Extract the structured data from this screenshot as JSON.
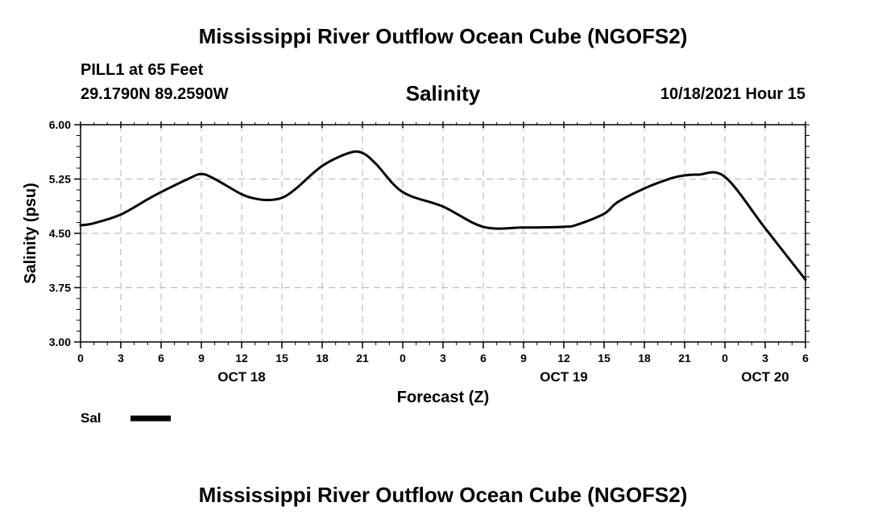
{
  "page": {
    "title_top": "Mississippi River Outflow Ocean Cube (NGOFS2)",
    "title_bottom": "Mississippi River Outflow Ocean Cube (NGOFS2)"
  },
  "station": {
    "name_line": "PILL1 at 65 Feet",
    "coords_line": "29.1790N  89.2590W",
    "datetime": "10/18/2021 Hour 15"
  },
  "chart_data": {
    "type": "line",
    "title": "Salinity",
    "xlabel": "Forecast (Z)",
    "ylabel": "Salinity (psu)",
    "ylim": [
      3.0,
      6.0
    ],
    "yticks": [
      3.0,
      3.75,
      4.5,
      5.25,
      6.0
    ],
    "ytick_labels": [
      "3.00",
      "3.75",
      "4.50",
      "5.25",
      "6.00"
    ],
    "xlim": [
      0,
      54
    ],
    "xticks": [
      0,
      3,
      6,
      9,
      12,
      15,
      18,
      21,
      24,
      27,
      30,
      33,
      36,
      39,
      42,
      45,
      48,
      51,
      54
    ],
    "xtick_labels": [
      "0",
      "3",
      "6",
      "9",
      "12",
      "15",
      "18",
      "21",
      "0",
      "3",
      "6",
      "9",
      "12",
      "15",
      "18",
      "21",
      "0",
      "3",
      "6"
    ],
    "date_labels": [
      {
        "x": 12,
        "label": "OCT 18"
      },
      {
        "x": 36,
        "label": "OCT 19"
      },
      {
        "x": 51,
        "label": "OCT 20"
      }
    ],
    "grid": true,
    "legend": "bottom-left",
    "series": [
      {
        "name": "Sal",
        "x": [
          0,
          1,
          3,
          5,
          6,
          8,
          9,
          10,
          12,
          13,
          14,
          15,
          16,
          18,
          20,
          21,
          22,
          24,
          27,
          30,
          33,
          36,
          37,
          39,
          40,
          42,
          44,
          45,
          46,
          48,
          51,
          54
        ],
        "values": [
          4.61,
          4.64,
          4.76,
          4.97,
          5.07,
          5.25,
          5.32,
          5.25,
          5.04,
          4.98,
          4.96,
          4.99,
          5.11,
          5.43,
          5.61,
          5.61,
          5.46,
          5.07,
          4.87,
          4.59,
          4.58,
          4.59,
          4.62,
          4.77,
          4.93,
          5.12,
          5.26,
          5.3,
          5.31,
          5.28,
          4.57,
          3.86
        ]
      }
    ]
  }
}
